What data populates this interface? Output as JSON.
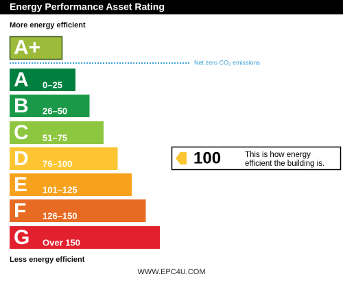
{
  "header": {
    "title": "Energy Performance Asset Rating"
  },
  "top_label": "More energy efficient",
  "bottom_label": "Less energy efficient",
  "top_band": {
    "letter": "A+"
  },
  "note": "Net zero CO₂ emissions",
  "bands": [
    {
      "letter": "A",
      "range": "0–25"
    },
    {
      "letter": "B",
      "range": "26–50"
    },
    {
      "letter": "C",
      "range": "51–75"
    },
    {
      "letter": "D",
      "range": "76–100"
    },
    {
      "letter": "E",
      "range": "101–125"
    },
    {
      "letter": "F",
      "range": "126–150"
    },
    {
      "letter": "G",
      "range": "Over 150"
    }
  ],
  "indicator": {
    "value": 100,
    "text": [
      "This is how energy",
      "efficient the building is."
    ]
  },
  "footer": "WWW.EPC4U.COM"
}
